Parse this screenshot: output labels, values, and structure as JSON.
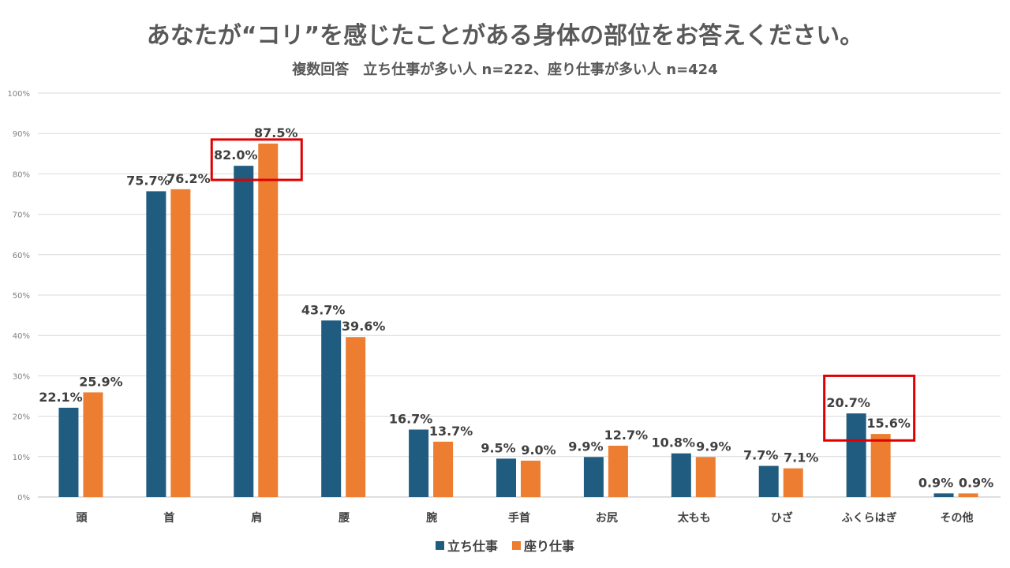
{
  "chart_data": {
    "type": "bar",
    "title": "あなたが“コリ”を感じたことがある身体の部位をお答えください。",
    "subtitle": "複数回答　立ち仕事が多い人 n=222、座り仕事が多い人 n=424",
    "categories": [
      "頭",
      "首",
      "肩",
      "腰",
      "腕",
      "手首",
      "お尻",
      "太もも",
      "ひざ",
      "ふくらはぎ",
      "その他"
    ],
    "series": [
      {
        "name": "立ち仕事",
        "color": "#1f5c80",
        "values": [
          22.1,
          75.7,
          82.0,
          43.7,
          16.7,
          9.5,
          9.9,
          10.8,
          7.7,
          20.7,
          0.9
        ],
        "labels": [
          "22.1%",
          "75.7%",
          "82.0%",
          "43.7%",
          "16.7%",
          "9.5%",
          "9.9%",
          "10.8%",
          "7.7%",
          "20.7%",
          "0.9%"
        ]
      },
      {
        "name": "座り仕事",
        "color": "#ed7d31",
        "values": [
          25.9,
          76.2,
          87.5,
          39.6,
          13.7,
          9.0,
          12.7,
          9.9,
          7.1,
          15.6,
          0.9
        ],
        "labels": [
          "25.9%",
          "76.2%",
          "87.5%",
          "39.6%",
          "13.7%",
          "9.0%",
          "12.7%",
          "9.9%",
          "7.1%",
          "15.6%",
          "0.9%"
        ]
      }
    ],
    "yticks": [
      "0%",
      "10%",
      "20%",
      "30%",
      "40%",
      "50%",
      "60%",
      "70%",
      "80%",
      "90%",
      "100%"
    ],
    "ylim": [
      0,
      100
    ],
    "grid": true,
    "legend": "bottom-center",
    "highlight_color": "#e00000"
  }
}
